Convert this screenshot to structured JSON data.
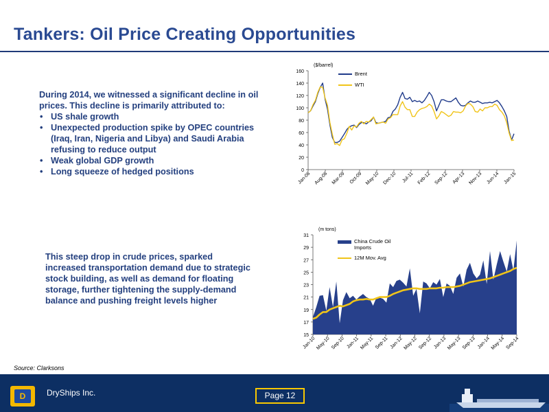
{
  "slide": {
    "title": "Tankers: Oil Price Creating Opportunities",
    "intro": "During 2014, we witnessed a significant decline in oil prices. This decline is primarily attributed to:",
    "bullets": [
      "US shale growth",
      "Unexpected production spike by OPEC countries (Iraq, Iran, Nigeria and Libya) and Saudi Arabia refusing to reduce output",
      "Weak global GDP growth",
      "Long squeeze of hedged positions"
    ],
    "paragraph": "This steep drop in crude prices, sparked increased transportation demand due to strategic stock building, as well as demand for floating storage, further tightening the supply-demand balance and pushing freight levels higher",
    "source": "Source: Clarksons"
  },
  "footer": {
    "company": "DryShips Inc.",
    "page": "Page 12",
    "logo_letter": "D"
  },
  "colors": {
    "title": "#2a4a92",
    "text": "#24407f",
    "footer": "#0d2f63",
    "brent": "#1f3a8a",
    "wti": "#f0c419",
    "imports": "#27408b",
    "avg": "#f0c419",
    "page_border": "#fac900"
  },
  "chart_data": [
    {
      "type": "line",
      "unit_label": "($/barrel)",
      "ylim": [
        0,
        160
      ],
      "yticks": [
        0,
        20,
        40,
        60,
        80,
        100,
        120,
        140,
        160
      ],
      "x_tick_labels": [
        "Jan-08",
        "Aug-08",
        "Mar-09",
        "Oct-09",
        "May-10",
        "Dec-10",
        "Jul-11",
        "Feb-12",
        "Sep-12",
        "Apr-13",
        "Nov-13",
        "Jun-14",
        "Jan-15"
      ],
      "legend_position": "top-right",
      "series": [
        {
          "name": "Brent",
          "color": "#1f3a8a",
          "values": [
            92,
            95,
            103,
            110,
            123,
            133,
            140,
            114,
            98,
            72,
            52,
            44,
            44,
            46,
            52,
            58,
            65,
            69,
            71,
            72,
            68,
            73,
            76,
            76,
            74,
            77,
            79,
            85,
            76,
            75,
            76,
            77,
            78,
            84,
            85,
            94,
            98,
            105,
            117,
            125,
            115,
            114,
            117,
            110,
            112,
            110,
            111,
            108,
            112,
            118,
            125,
            120,
            110,
            95,
            104,
            113,
            113,
            111,
            110,
            110,
            113,
            116,
            109,
            104,
            103,
            104,
            108,
            111,
            109,
            109,
            111,
            109,
            107,
            108,
            108,
            109,
            108,
            110,
            112,
            108,
            102,
            95,
            86,
            62,
            48,
            58
          ]
        },
        {
          "name": "WTI",
          "color": "#f0c419",
          "values": [
            92,
            95,
            105,
            112,
            125,
            134,
            133,
            116,
            104,
            76,
            57,
            41,
            42,
            39,
            48,
            50,
            59,
            70,
            64,
            71,
            69,
            75,
            78,
            74,
            78,
            77,
            81,
            85,
            74,
            75,
            76,
            77,
            75,
            82,
            84,
            89,
            89,
            89,
            103,
            110,
            101,
            97,
            97,
            86,
            86,
            93,
            97,
            99,
            100,
            102,
            106,
            103,
            94,
            82,
            87,
            94,
            92,
            89,
            86,
            88,
            94,
            93,
            93,
            92,
            95,
            103,
            107,
            106,
            102,
            94,
            93,
            98,
            95,
            100,
            100,
            102,
            102,
            106,
            104,
            97,
            93,
            87,
            76,
            59,
            47,
            48
          ]
        }
      ]
    },
    {
      "type": "area",
      "unit_label": "(m tons)",
      "ylim": [
        15,
        31
      ],
      "yticks": [
        15,
        17,
        19,
        21,
        23,
        25,
        27,
        29,
        31
      ],
      "x_tick_labels": [
        "Jan-10",
        "May-10",
        "Sep-10",
        "Jan-11",
        "May-11",
        "Sep-11",
        "Jan-12",
        "May-12",
        "Sep-12",
        "Jan-13",
        "May-13",
        "Sep-13",
        "Jan-14",
        "May-14",
        "Sep-14"
      ],
      "legend_position": "top-left",
      "series": [
        {
          "name": "China Crude Oil Imports",
          "color": "#27408b",
          "values": [
            17.8,
            19.4,
            21.2,
            21.3,
            18.8,
            22.6,
            19.4,
            23.5,
            16.8,
            20.5,
            21.8,
            20.8,
            21.2,
            20.6,
            21.1,
            21.5,
            21.0,
            20.7,
            19.6,
            20.9,
            20.9,
            20.7,
            20.1,
            23.2,
            22.6,
            23.6,
            23.8,
            23.3,
            22.7,
            25.6,
            21.2,
            22.3,
            18.4,
            23.5,
            23.2,
            22.4,
            23.4,
            23.0,
            23.9,
            21.0,
            23.2,
            22.8,
            21.5,
            24.1,
            24.8,
            22.7,
            25.4,
            26.5,
            24.8,
            24.0,
            24.6,
            26.9,
            23.1,
            28.4,
            23.8,
            26.2,
            28.4,
            26.7,
            25.1,
            27.9,
            25.3,
            30.1
          ]
        },
        {
          "name": "12M Mov. Avg",
          "color": "#f0c419",
          "values": [
            17.5,
            17.7,
            18.2,
            18.6,
            18.6,
            19.0,
            19.2,
            19.4,
            19.6,
            19.5,
            19.7,
            19.9,
            20.3,
            20.5,
            20.6,
            20.6,
            20.7,
            20.6,
            20.6,
            20.8,
            21.0,
            21.0,
            21.0,
            21.2,
            21.5,
            21.7,
            21.9,
            22.1,
            22.2,
            22.3,
            22.4,
            22.4,
            22.3,
            22.3,
            22.3,
            22.4,
            22.4,
            22.4,
            22.5,
            22.5,
            22.6,
            22.6,
            22.6,
            22.7,
            22.8,
            23.0,
            23.2,
            23.4,
            23.5,
            23.6,
            23.7,
            23.8,
            23.9,
            24.0,
            24.2,
            24.4,
            24.6,
            24.8,
            25.0,
            25.2,
            25.5,
            25.7
          ]
        }
      ]
    }
  ]
}
